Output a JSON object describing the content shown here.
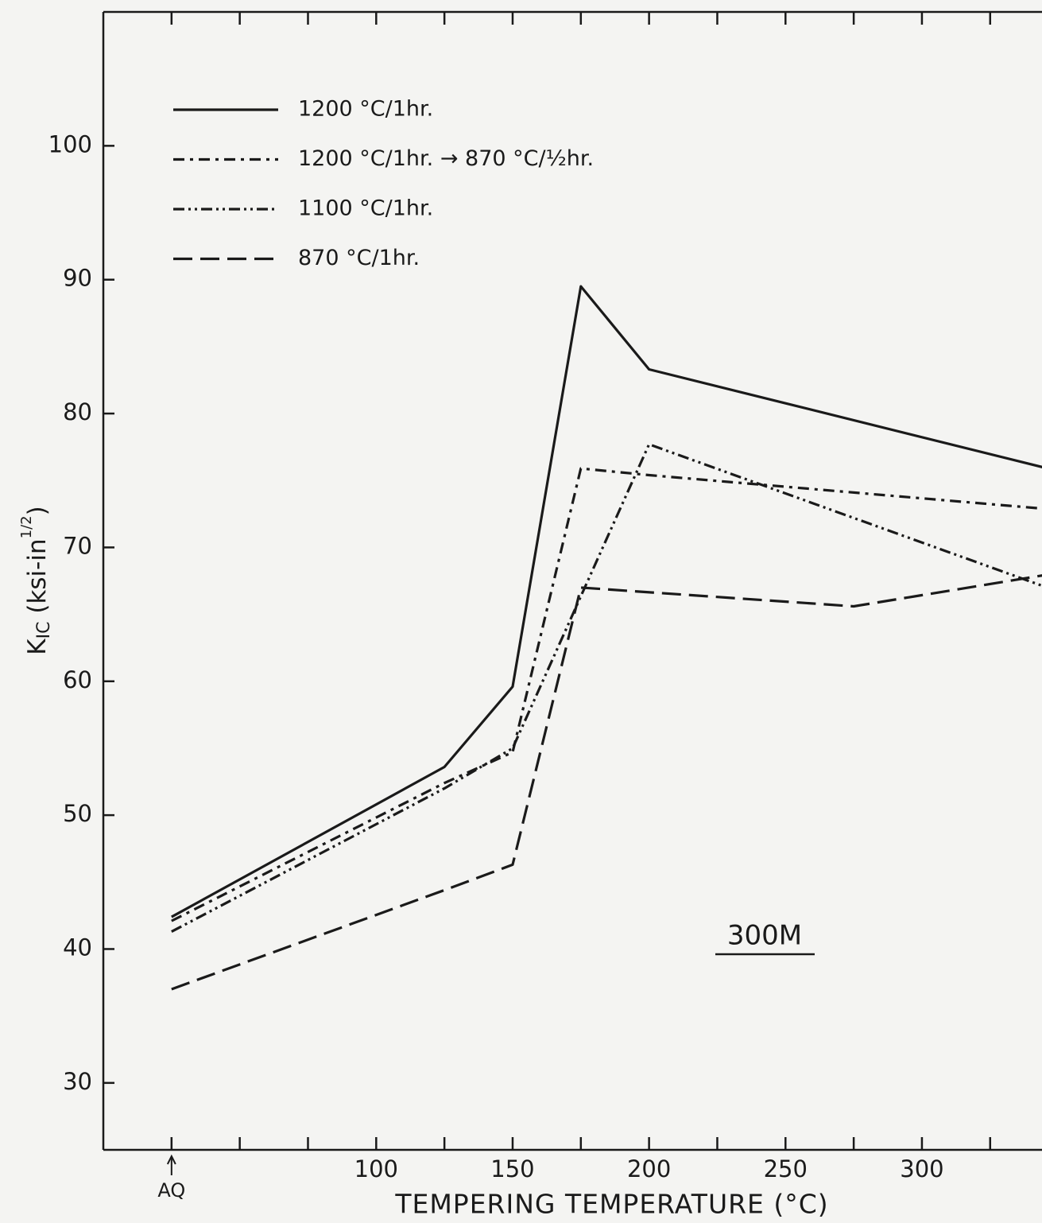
{
  "chart_data": {
    "type": "line",
    "y_label": [
      "K",
      "IC",
      " (ksi-in",
      "1/2",
      ")"
    ],
    "x_label": "TEMPERING TEMPERATURE (°C)",
    "annotation": "300M",
    "xlim": [
      0,
      344
    ],
    "ylim": [
      25,
      110
    ],
    "xticks": [
      {
        "value": 25,
        "label": "AQ"
      },
      100,
      150,
      200,
      250,
      300
    ],
    "xminorticks": [
      50,
      75,
      125,
      175,
      225,
      275,
      325
    ],
    "yticks": [
      30,
      40,
      50,
      60,
      70,
      80,
      90,
      100
    ],
    "series": [
      {
        "name": "1200 °C/1hr.",
        "color": "#1a1a1a",
        "dash": "none",
        "x": [
          25,
          125,
          150,
          175,
          200,
          350
        ],
        "values": [
          42.4,
          53.6,
          59.6,
          89.5,
          83.3,
          75.7
        ]
      },
      {
        "name": "1200 °C/1hr. → 870 °C/½hr.",
        "color": "#1a1a1a",
        "dash": "14 7 4 7",
        "x": [
          25,
          125,
          150,
          175,
          200,
          350
        ],
        "values": [
          42.1,
          52.4,
          54.7,
          75.9,
          75.4,
          72.8
        ]
      },
      {
        "name": "1100 °C/1hr.",
        "color": "#1a1a1a",
        "dash": "14 5 3 5 3 5",
        "x": [
          25,
          125,
          150,
          200,
          350
        ],
        "values": [
          41.3,
          52.0,
          55.0,
          77.7,
          66.7
        ]
      },
      {
        "name": "870 °C/1hr.",
        "color": "#1a1a1a",
        "dash": "24 10",
        "x": [
          25,
          125,
          150,
          175,
          275,
          350
        ],
        "values": [
          37.0,
          44.4,
          46.3,
          67.0,
          65.6,
          68.1
        ]
      }
    ]
  }
}
